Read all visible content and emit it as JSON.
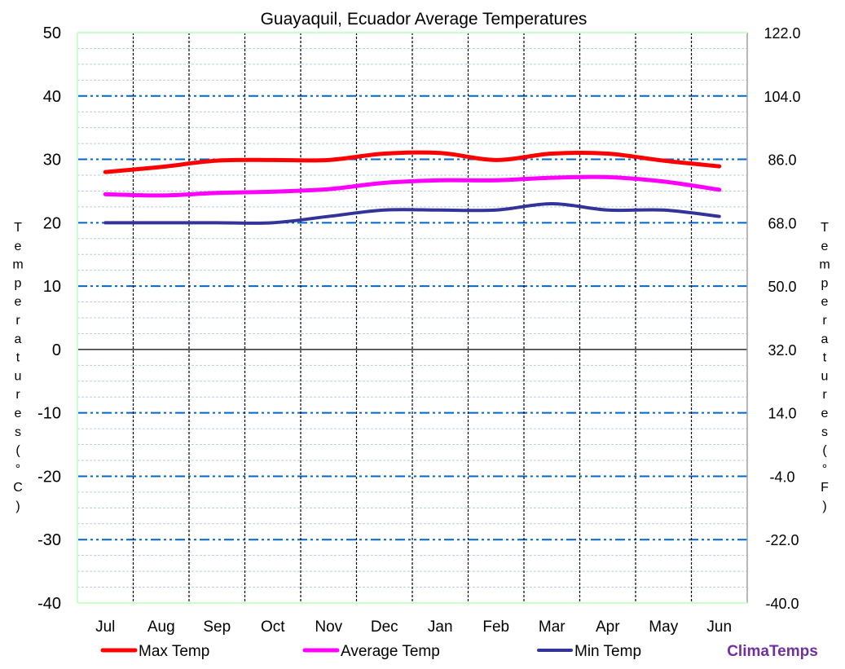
{
  "chart_data": {
    "type": "line",
    "title": "Guayaquil, Ecuador Average  Temperatures",
    "ylabel": "Temperatures (°C)",
    "y2label": "Temperatures (°F)",
    "categories": [
      "Jul",
      "Aug",
      "Sep",
      "Oct",
      "Nov",
      "Dec",
      "Jan",
      "Feb",
      "Mar",
      "Apr",
      "May",
      "Jun"
    ],
    "ylim": [
      -40,
      50
    ],
    "yticks": [
      "50",
      "40",
      "30",
      "20",
      "10",
      "0",
      "-10",
      "-20",
      "-30",
      "-40"
    ],
    "y2ticks": [
      "122.0",
      "104.0",
      "86.0",
      "68.0",
      "50.0",
      "32.0",
      "14.0",
      "-4.0",
      "-22.0",
      "-40.0"
    ],
    "grid": true,
    "legend": "bottom",
    "series": [
      {
        "name": "Max Temp",
        "color": "#ff0000",
        "values": [
          28,
          28.8,
          29.8,
          29.9,
          29.9,
          30.9,
          31,
          29.9,
          30.9,
          30.9,
          29.8,
          28.9
        ]
      },
      {
        "name": "Average Temp",
        "color": "#ff00ff",
        "values": [
          24.5,
          24.3,
          24.7,
          24.9,
          25.3,
          26.3,
          26.7,
          26.7,
          27.1,
          27.2,
          26.5,
          25.2
        ]
      },
      {
        "name": "Min Temp",
        "color": "#333399",
        "values": [
          20,
          20,
          20,
          20,
          21,
          22,
          22,
          22,
          23,
          22,
          22,
          21
        ]
      }
    ]
  },
  "brand": {
    "text": "ClimaTemps",
    "color": "#7030a0"
  }
}
